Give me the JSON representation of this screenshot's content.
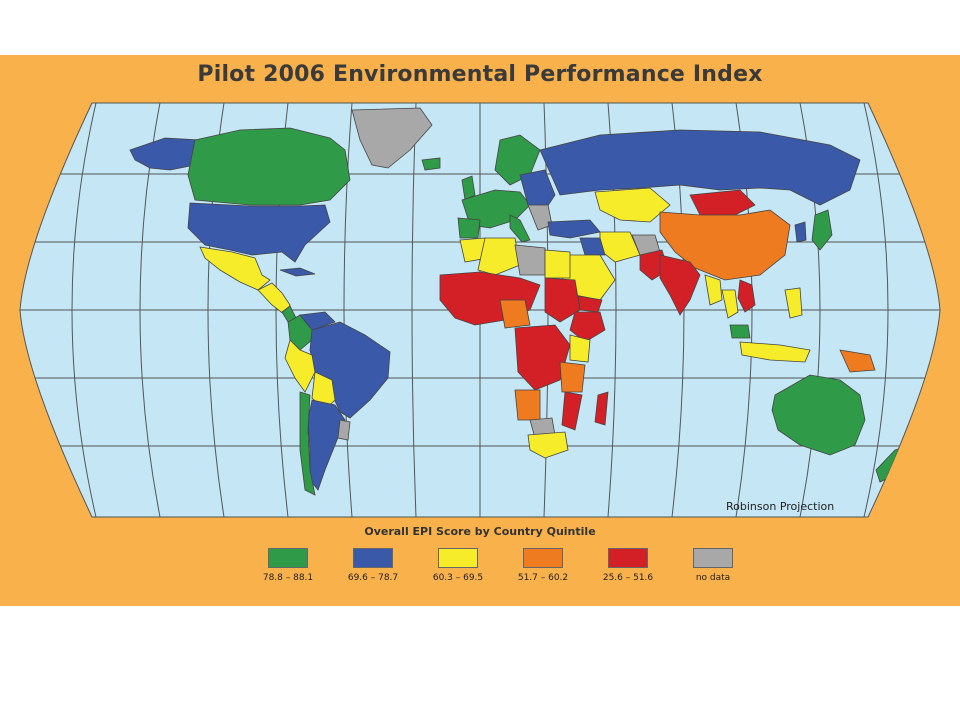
{
  "title": "Pilot 2006 Environmental Performance Index",
  "projection_note": "Robinson Projection",
  "legend": {
    "title": "Overall EPI Score by Country Quintile",
    "items": [
      {
        "label": "78.8 – 88.1",
        "color": "#2f9a47"
      },
      {
        "label": "69.6 – 78.7",
        "color": "#3a59a8"
      },
      {
        "label": "60.3 – 69.5",
        "color": "#f6ec2a"
      },
      {
        "label": "51.7 – 60.2",
        "color": "#ef7b21"
      },
      {
        "label": "25.6 – 51.6",
        "color": "#d32027"
      },
      {
        "label": "no data",
        "color": "#a8a8a8"
      }
    ]
  },
  "colors": {
    "background": "#f9b14c",
    "ocean": "#c4e6f5",
    "graticule": "#555555"
  }
}
